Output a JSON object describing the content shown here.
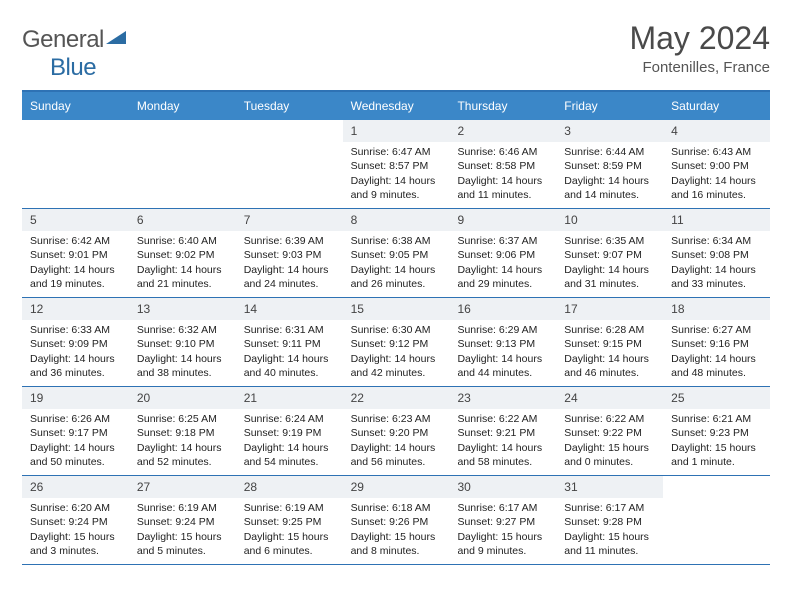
{
  "logo": {
    "text_a": "General",
    "text_b": "Blue"
  },
  "title": "May 2024",
  "location": "Fontenilles, France",
  "colors": {
    "header_bg": "#3b87c8",
    "header_text": "#ffffff",
    "border": "#2e72b4",
    "daynum_bg": "#eef1f4",
    "text": "#333333",
    "logo_blue": "#2b6ca3"
  },
  "day_headers": [
    "Sunday",
    "Monday",
    "Tuesday",
    "Wednesday",
    "Thursday",
    "Friday",
    "Saturday"
  ],
  "weeks": [
    [
      {
        "n": "",
        "empty": true
      },
      {
        "n": "",
        "empty": true
      },
      {
        "n": "",
        "empty": true
      },
      {
        "n": "1",
        "sr": "Sunrise: 6:47 AM",
        "ss": "Sunset: 8:57 PM",
        "d1": "Daylight: 14 hours",
        "d2": "and 9 minutes."
      },
      {
        "n": "2",
        "sr": "Sunrise: 6:46 AM",
        "ss": "Sunset: 8:58 PM",
        "d1": "Daylight: 14 hours",
        "d2": "and 11 minutes."
      },
      {
        "n": "3",
        "sr": "Sunrise: 6:44 AM",
        "ss": "Sunset: 8:59 PM",
        "d1": "Daylight: 14 hours",
        "d2": "and 14 minutes."
      },
      {
        "n": "4",
        "sr": "Sunrise: 6:43 AM",
        "ss": "Sunset: 9:00 PM",
        "d1": "Daylight: 14 hours",
        "d2": "and 16 minutes."
      }
    ],
    [
      {
        "n": "5",
        "sr": "Sunrise: 6:42 AM",
        "ss": "Sunset: 9:01 PM",
        "d1": "Daylight: 14 hours",
        "d2": "and 19 minutes."
      },
      {
        "n": "6",
        "sr": "Sunrise: 6:40 AM",
        "ss": "Sunset: 9:02 PM",
        "d1": "Daylight: 14 hours",
        "d2": "and 21 minutes."
      },
      {
        "n": "7",
        "sr": "Sunrise: 6:39 AM",
        "ss": "Sunset: 9:03 PM",
        "d1": "Daylight: 14 hours",
        "d2": "and 24 minutes."
      },
      {
        "n": "8",
        "sr": "Sunrise: 6:38 AM",
        "ss": "Sunset: 9:05 PM",
        "d1": "Daylight: 14 hours",
        "d2": "and 26 minutes."
      },
      {
        "n": "9",
        "sr": "Sunrise: 6:37 AM",
        "ss": "Sunset: 9:06 PM",
        "d1": "Daylight: 14 hours",
        "d2": "and 29 minutes."
      },
      {
        "n": "10",
        "sr": "Sunrise: 6:35 AM",
        "ss": "Sunset: 9:07 PM",
        "d1": "Daylight: 14 hours",
        "d2": "and 31 minutes."
      },
      {
        "n": "11",
        "sr": "Sunrise: 6:34 AM",
        "ss": "Sunset: 9:08 PM",
        "d1": "Daylight: 14 hours",
        "d2": "and 33 minutes."
      }
    ],
    [
      {
        "n": "12",
        "sr": "Sunrise: 6:33 AM",
        "ss": "Sunset: 9:09 PM",
        "d1": "Daylight: 14 hours",
        "d2": "and 36 minutes."
      },
      {
        "n": "13",
        "sr": "Sunrise: 6:32 AM",
        "ss": "Sunset: 9:10 PM",
        "d1": "Daylight: 14 hours",
        "d2": "and 38 minutes."
      },
      {
        "n": "14",
        "sr": "Sunrise: 6:31 AM",
        "ss": "Sunset: 9:11 PM",
        "d1": "Daylight: 14 hours",
        "d2": "and 40 minutes."
      },
      {
        "n": "15",
        "sr": "Sunrise: 6:30 AM",
        "ss": "Sunset: 9:12 PM",
        "d1": "Daylight: 14 hours",
        "d2": "and 42 minutes."
      },
      {
        "n": "16",
        "sr": "Sunrise: 6:29 AM",
        "ss": "Sunset: 9:13 PM",
        "d1": "Daylight: 14 hours",
        "d2": "and 44 minutes."
      },
      {
        "n": "17",
        "sr": "Sunrise: 6:28 AM",
        "ss": "Sunset: 9:15 PM",
        "d1": "Daylight: 14 hours",
        "d2": "and 46 minutes."
      },
      {
        "n": "18",
        "sr": "Sunrise: 6:27 AM",
        "ss": "Sunset: 9:16 PM",
        "d1": "Daylight: 14 hours",
        "d2": "and 48 minutes."
      }
    ],
    [
      {
        "n": "19",
        "sr": "Sunrise: 6:26 AM",
        "ss": "Sunset: 9:17 PM",
        "d1": "Daylight: 14 hours",
        "d2": "and 50 minutes."
      },
      {
        "n": "20",
        "sr": "Sunrise: 6:25 AM",
        "ss": "Sunset: 9:18 PM",
        "d1": "Daylight: 14 hours",
        "d2": "and 52 minutes."
      },
      {
        "n": "21",
        "sr": "Sunrise: 6:24 AM",
        "ss": "Sunset: 9:19 PM",
        "d1": "Daylight: 14 hours",
        "d2": "and 54 minutes."
      },
      {
        "n": "22",
        "sr": "Sunrise: 6:23 AM",
        "ss": "Sunset: 9:20 PM",
        "d1": "Daylight: 14 hours",
        "d2": "and 56 minutes."
      },
      {
        "n": "23",
        "sr": "Sunrise: 6:22 AM",
        "ss": "Sunset: 9:21 PM",
        "d1": "Daylight: 14 hours",
        "d2": "and 58 minutes."
      },
      {
        "n": "24",
        "sr": "Sunrise: 6:22 AM",
        "ss": "Sunset: 9:22 PM",
        "d1": "Daylight: 15 hours",
        "d2": "and 0 minutes."
      },
      {
        "n": "25",
        "sr": "Sunrise: 6:21 AM",
        "ss": "Sunset: 9:23 PM",
        "d1": "Daylight: 15 hours",
        "d2": "and 1 minute."
      }
    ],
    [
      {
        "n": "26",
        "sr": "Sunrise: 6:20 AM",
        "ss": "Sunset: 9:24 PM",
        "d1": "Daylight: 15 hours",
        "d2": "and 3 minutes."
      },
      {
        "n": "27",
        "sr": "Sunrise: 6:19 AM",
        "ss": "Sunset: 9:24 PM",
        "d1": "Daylight: 15 hours",
        "d2": "and 5 minutes."
      },
      {
        "n": "28",
        "sr": "Sunrise: 6:19 AM",
        "ss": "Sunset: 9:25 PM",
        "d1": "Daylight: 15 hours",
        "d2": "and 6 minutes."
      },
      {
        "n": "29",
        "sr": "Sunrise: 6:18 AM",
        "ss": "Sunset: 9:26 PM",
        "d1": "Daylight: 15 hours",
        "d2": "and 8 minutes."
      },
      {
        "n": "30",
        "sr": "Sunrise: 6:17 AM",
        "ss": "Sunset: 9:27 PM",
        "d1": "Daylight: 15 hours",
        "d2": "and 9 minutes."
      },
      {
        "n": "31",
        "sr": "Sunrise: 6:17 AM",
        "ss": "Sunset: 9:28 PM",
        "d1": "Daylight: 15 hours",
        "d2": "and 11 minutes."
      },
      {
        "n": "",
        "empty": true
      }
    ]
  ]
}
